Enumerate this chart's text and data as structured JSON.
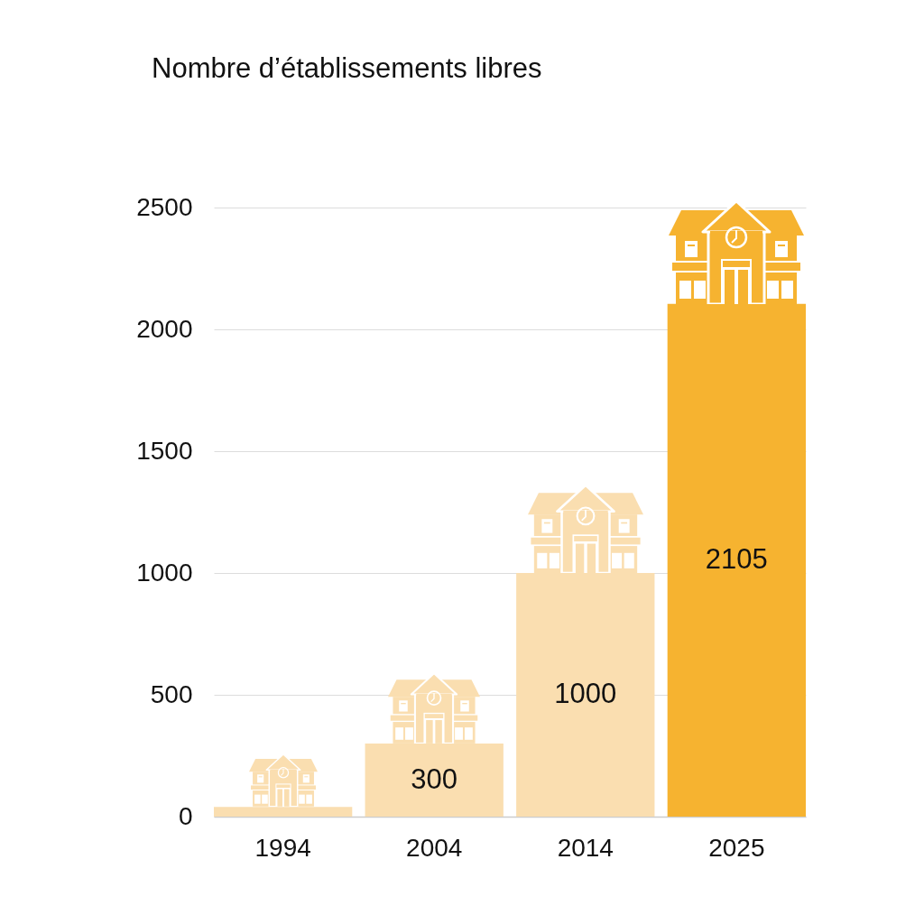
{
  "chart_data": {
    "type": "bar",
    "title": "Nombre d’établissements libres",
    "categories": [
      "1994",
      "2004",
      "2014",
      "2025"
    ],
    "values": [
      40,
      300,
      1000,
      2105
    ],
    "colors": [
      "#fadeb0",
      "#fadeb0",
      "#fadeb0",
      "#f6b330"
    ],
    "value_labels": [
      null,
      "300",
      "1000",
      "2105"
    ],
    "ylim": [
      0,
      2500
    ],
    "yticks": [
      0,
      500,
      1000,
      1500,
      2000,
      2500
    ],
    "grid": "y"
  }
}
